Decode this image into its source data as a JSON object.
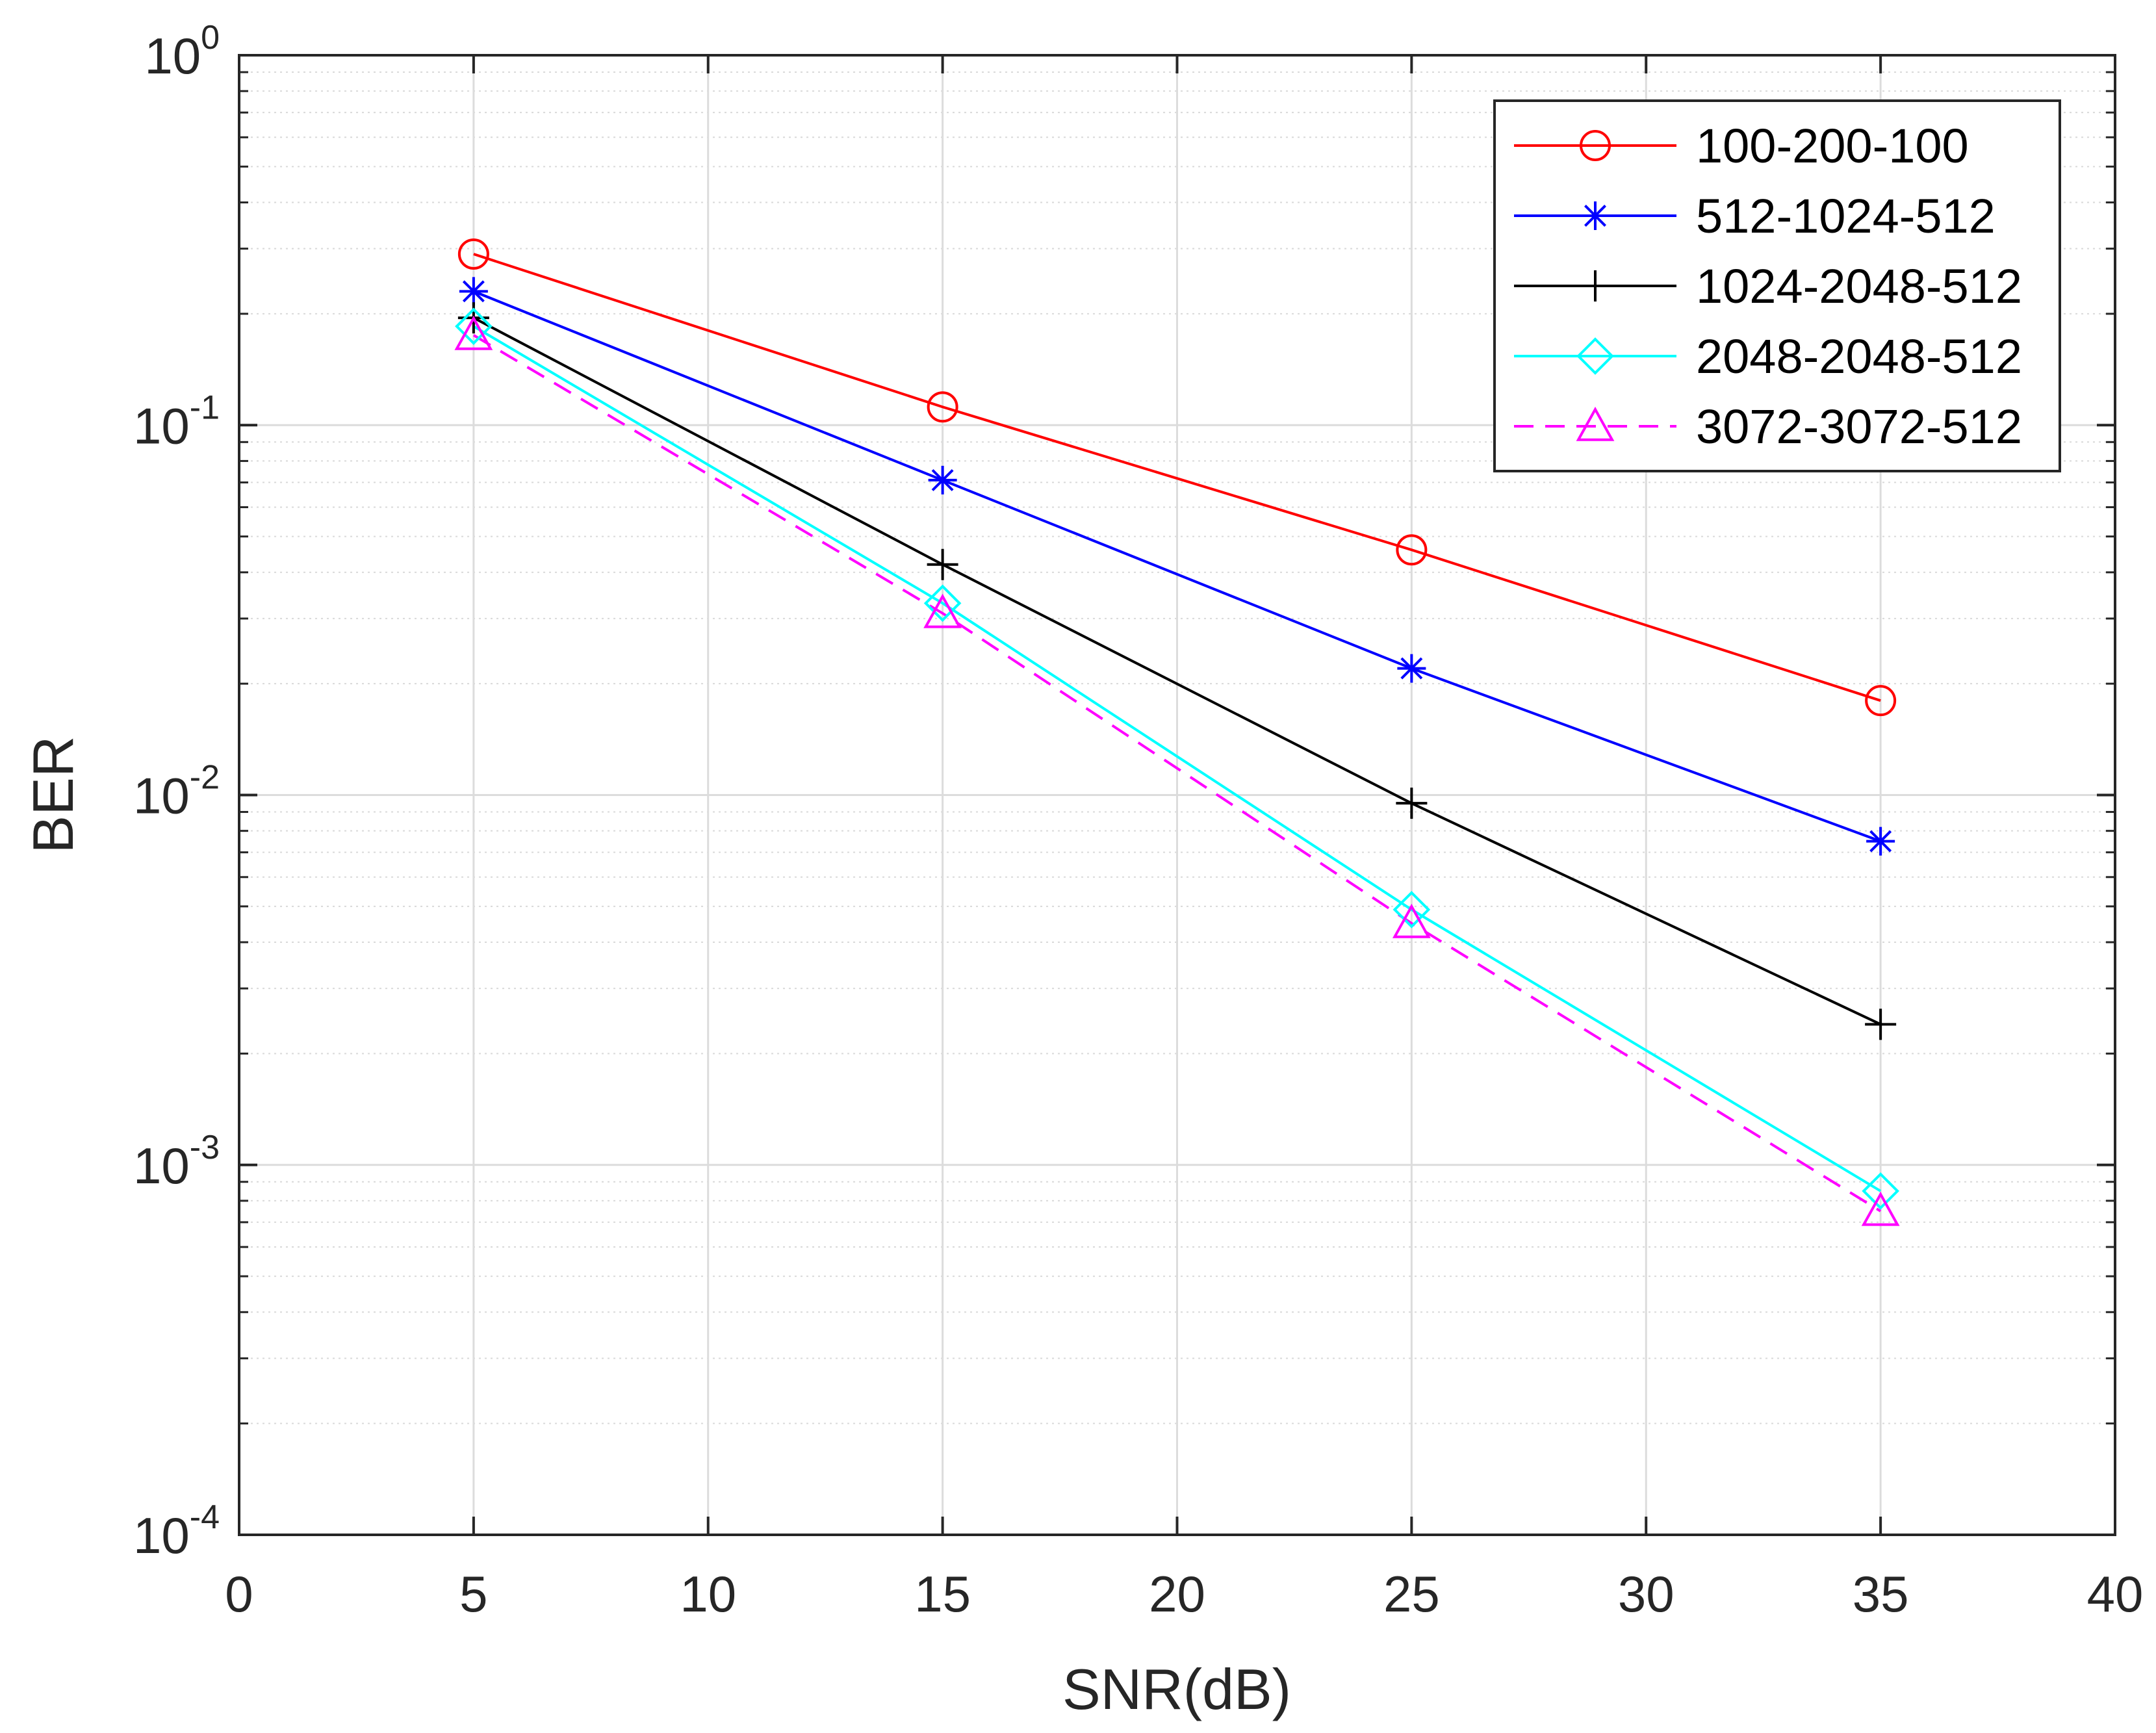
{
  "chart_data": {
    "type": "line",
    "title": "",
    "xlabel": "SNR(dB)",
    "ylabel": "BER",
    "xlim": [
      0,
      40
    ],
    "ylim": [
      0.0001,
      1
    ],
    "yscale": "log",
    "grid": true,
    "minor_grid": true,
    "legend_position": "top-right",
    "x_ticks": [
      0,
      5,
      10,
      15,
      20,
      25,
      30,
      35,
      40
    ],
    "x_tick_labels": [
      "0",
      "5",
      "10",
      "15",
      "20",
      "25",
      "30",
      "35",
      "40"
    ],
    "y_ticks": [
      {
        "value": 1,
        "base": "10",
        "exp": "0"
      },
      {
        "value": 0.1,
        "base": "10",
        "exp": "-1"
      },
      {
        "value": 0.01,
        "base": "10",
        "exp": "-2"
      },
      {
        "value": 0.001,
        "base": "10",
        "exp": "-3"
      },
      {
        "value": 0.0001,
        "base": "10",
        "exp": "-4"
      }
    ],
    "x": [
      5,
      15,
      25,
      35
    ],
    "series": [
      {
        "name": "100-200-100",
        "color": "#ff0000",
        "marker": "circle",
        "dash": "solid",
        "values": [
          0.29,
          0.112,
          0.046,
          0.018
        ]
      },
      {
        "name": "512-1024-512",
        "color": "#0000ff",
        "marker": "asterisk",
        "dash": "solid",
        "values": [
          0.23,
          0.071,
          0.022,
          0.0075
        ]
      },
      {
        "name": "1024-2048-512",
        "color": "#000000",
        "marker": "plus",
        "dash": "solid",
        "values": [
          0.195,
          0.042,
          0.0095,
          0.0024
        ]
      },
      {
        "name": "2048-2048-512",
        "color": "#00ffff",
        "marker": "diamond",
        "dash": "solid",
        "values": [
          0.185,
          0.033,
          0.0049,
          0.00085
        ]
      },
      {
        "name": "3072-3072-512",
        "color": "#ff00ff",
        "marker": "triangle",
        "dash": "dashed",
        "values": [
          0.175,
          0.031,
          0.0045,
          0.00075
        ]
      }
    ]
  }
}
